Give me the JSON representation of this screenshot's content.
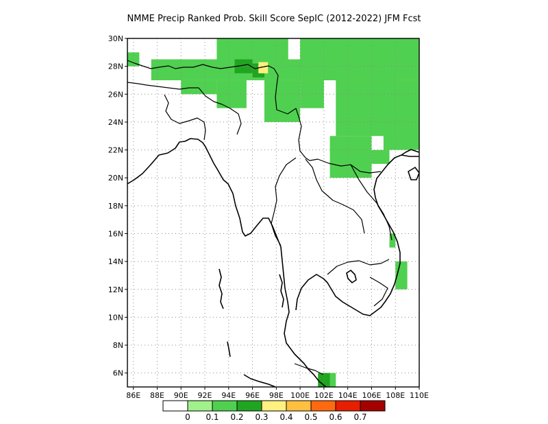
{
  "title": "NMME Precip Ranked Prob. Skill Score SepIC (2012-2022) JFM Fcst",
  "map": {
    "lon_range": [
      85.5,
      110
    ],
    "lat_range": [
      5,
      30
    ],
    "lon_ticks": [
      86,
      88,
      90,
      92,
      94,
      96,
      98,
      100,
      102,
      104,
      106,
      108,
      110
    ],
    "lon_labels": [
      "86E",
      "88E",
      "90E",
      "92E",
      "94E",
      "96E",
      "98E",
      "100E",
      "102E",
      "104E",
      "106E",
      "108E",
      "110E"
    ],
    "lat_ticks": [
      6,
      8,
      10,
      12,
      14,
      16,
      18,
      20,
      22,
      24,
      26,
      28,
      30
    ],
    "lat_labels": [
      "6N",
      "8N",
      "10N",
      "12N",
      "14N",
      "16N",
      "18N",
      "20N",
      "22N",
      "24N",
      "26N",
      "28N",
      "30N"
    ],
    "grid": true,
    "skill_regions": [
      {
        "level": "0.1-0.2",
        "lon": [
          85.5,
          86.5
        ],
        "lat": [
          28,
          29
        ]
      },
      {
        "level": "0.1-0.2",
        "lon": [
          87.5,
          108
        ],
        "lat": [
          27,
          28.5
        ]
      },
      {
        "level": "0.1-0.2",
        "lon": [
          93,
          99
        ],
        "lat": [
          28,
          30
        ]
      },
      {
        "level": "0.1-0.2",
        "lon": [
          90,
          93
        ],
        "lat": [
          26,
          27
        ]
      },
      {
        "level": "0.1-0.2",
        "lon": [
          93,
          95.5
        ],
        "lat": [
          25,
          27
        ]
      },
      {
        "level": "0.1-0.2",
        "lon": [
          97,
          100
        ],
        "lat": [
          24,
          27
        ]
      },
      {
        "level": "0.1-0.2",
        "lon": [
          100,
          102
        ],
        "lat": [
          25,
          27
        ]
      },
      {
        "level": "0.1-0.2",
        "lon": [
          100,
          110
        ],
        "lat": [
          27,
          30
        ]
      },
      {
        "level": "0.1-0.2",
        "lon": [
          103,
          110
        ],
        "lat": [
          23,
          27
        ]
      },
      {
        "level": "0.1-0.2",
        "lon": [
          107,
          110
        ],
        "lat": [
          22,
          25
        ]
      },
      {
        "level": "0.1-0.2",
        "lon": [
          102.5,
          106
        ],
        "lat": [
          20,
          23
        ]
      },
      {
        "level": "0.1-0.2",
        "lon": [
          106,
          107.5
        ],
        "lat": [
          21,
          22
        ]
      },
      {
        "level": "0.1-0.2",
        "lon": [
          108,
          109
        ],
        "lat": [
          12,
          14
        ]
      },
      {
        "level": "0.1-0.2",
        "lon": [
          107.5,
          108
        ],
        "lat": [
          15,
          16
        ]
      },
      {
        "level": "0.1-0.2",
        "lon": [
          102,
          103
        ],
        "lat": [
          5,
          6
        ]
      },
      {
        "level": "0.2-0.3",
        "lon": [
          94.5,
          96
        ],
        "lat": [
          27.5,
          28.5
        ]
      },
      {
        "level": "0.2-0.3",
        "lon": [
          96,
          97
        ],
        "lat": [
          27.2,
          28.2
        ]
      },
      {
        "level": "0.2-0.3",
        "lon": [
          101.5,
          102.5
        ],
        "lat": [
          5,
          6
        ]
      },
      {
        "level": "0.3-0.4",
        "lon": [
          96.5,
          97.3
        ],
        "lat": [
          27.5,
          28.3
        ]
      }
    ]
  },
  "colorbar": {
    "colors": [
      "#ffffff",
      "#a0f08c",
      "#50d050",
      "#21a521",
      "#fff080",
      "#ffc040",
      "#ff6a10",
      "#e81e00",
      "#a50000"
    ],
    "labels": [
      "0",
      "0.1",
      "0.2",
      "0.3",
      "0.4",
      "0.5",
      "0.6",
      "0.7"
    ]
  }
}
